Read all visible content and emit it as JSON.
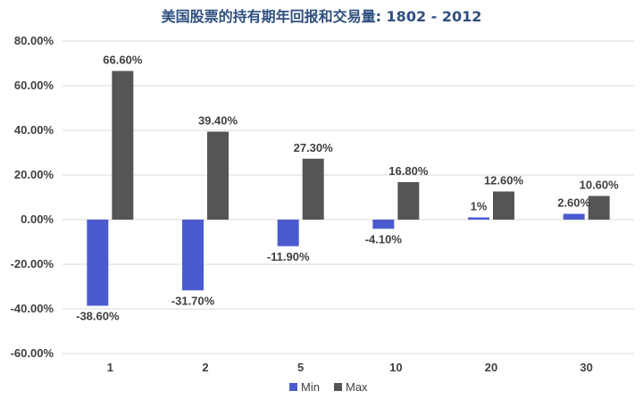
{
  "chart_data": {
    "type": "bar",
    "title": "美国股票的持有期年回报和交易量: 1802 - 2012",
    "categories": [
      "1",
      "2",
      "5",
      "10",
      "20",
      "30"
    ],
    "series": [
      {
        "name": "Min",
        "color": "#4a5bd0",
        "values": [
          -38.6,
          -31.7,
          -11.9,
          -4.1,
          1.0,
          2.6
        ],
        "labels": [
          "-38.60%",
          "-31.70%",
          "-11.90%",
          "-4.10%",
          "1%",
          "2.60%"
        ]
      },
      {
        "name": "Max",
        "color": "#555555",
        "values": [
          66.6,
          39.4,
          27.3,
          16.8,
          12.6,
          10.6
        ],
        "labels": [
          "66.60%",
          "39.40%",
          "27.30%",
          "16.80%",
          "12.60%",
          "10.60%"
        ]
      }
    ],
    "y_ticks": [
      80,
      60,
      40,
      20,
      0,
      -20,
      -40,
      -60
    ],
    "y_tick_labels": [
      "80.00%",
      "60.00%",
      "40.00%",
      "20.00%",
      "0.00%",
      "-20.00%",
      "-40.00%",
      "-60.00%"
    ],
    "ylim": [
      -60,
      80
    ],
    "grid": true,
    "legend": "bottom-center",
    "title_color": "#2f4f7f"
  }
}
